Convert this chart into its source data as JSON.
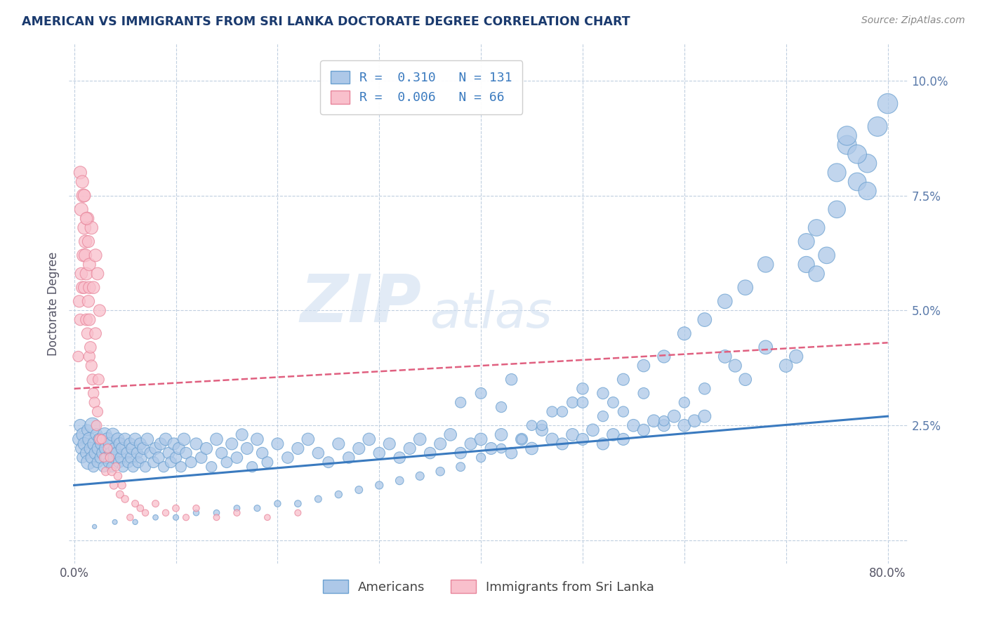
{
  "title": "AMERICAN VS IMMIGRANTS FROM SRI LANKA DOCTORATE DEGREE CORRELATION CHART",
  "source_text": "Source: ZipAtlas.com",
  "ylabel": "Doctorate Degree",
  "xlim": [
    -0.005,
    0.82
  ],
  "ylim": [
    -0.005,
    0.108
  ],
  "xtick_values": [
    0.0,
    0.1,
    0.2,
    0.3,
    0.4,
    0.5,
    0.6,
    0.7,
    0.8
  ],
  "xtick_labels": [
    "0.0%",
    "",
    "",
    "",
    "",
    "",
    "",
    "",
    "80.0%"
  ],
  "ytick_values": [
    0.0,
    0.025,
    0.05,
    0.075,
    0.1
  ],
  "ytick_labels": [
    "",
    "2.5%",
    "5.0%",
    "7.5%",
    "10.0%"
  ],
  "blue_fill_color": "#adc8e8",
  "blue_edge_color": "#6aa0d0",
  "blue_line_color": "#3a7abf",
  "pink_fill_color": "#f9c0cc",
  "pink_edge_color": "#e8849a",
  "pink_line_color": "#e06080",
  "r_blue": 0.31,
  "n_blue": 131,
  "r_pink": 0.006,
  "n_pink": 66,
  "legend_blue_label": "Americans",
  "legend_pink_label": "Immigrants from Sri Lanka",
  "watermark_zip": "ZIP",
  "watermark_atlas": "atlas",
  "background_color": "#ffffff",
  "grid_color": "#c0cfe0",
  "title_color": "#1a3a6e",
  "source_color": "#888888",
  "axis_label_color": "#5a7aaa",
  "blue_trend_x": [
    0.0,
    0.8
  ],
  "blue_trend_y": [
    0.012,
    0.027
  ],
  "pink_trend_x": [
    0.0,
    0.8
  ],
  "pink_trend_y": [
    0.033,
    0.043
  ],
  "blue_scatter": {
    "x": [
      0.005,
      0.006,
      0.007,
      0.008,
      0.009,
      0.01,
      0.012,
      0.013,
      0.014,
      0.015,
      0.016,
      0.017,
      0.018,
      0.019,
      0.02,
      0.021,
      0.022,
      0.023,
      0.024,
      0.025,
      0.026,
      0.027,
      0.028,
      0.029,
      0.03,
      0.031,
      0.032,
      0.033,
      0.034,
      0.035,
      0.036,
      0.037,
      0.038,
      0.039,
      0.04,
      0.042,
      0.043,
      0.044,
      0.045,
      0.046,
      0.047,
      0.048,
      0.05,
      0.052,
      0.053,
      0.055,
      0.056,
      0.057,
      0.058,
      0.06,
      0.062,
      0.063,
      0.065,
      0.066,
      0.068,
      0.07,
      0.072,
      0.075,
      0.078,
      0.08,
      0.083,
      0.085,
      0.088,
      0.09,
      0.093,
      0.095,
      0.098,
      0.1,
      0.103,
      0.105,
      0.108,
      0.11,
      0.115,
      0.12,
      0.125,
      0.13,
      0.135,
      0.14,
      0.145,
      0.15,
      0.155,
      0.16,
      0.165,
      0.17,
      0.175,
      0.18,
      0.185,
      0.19,
      0.2,
      0.21,
      0.22,
      0.23,
      0.24,
      0.25,
      0.26,
      0.27,
      0.28,
      0.29,
      0.3,
      0.31,
      0.32,
      0.33,
      0.34,
      0.35,
      0.36,
      0.37,
      0.38,
      0.39,
      0.4,
      0.41,
      0.42,
      0.43,
      0.44,
      0.45,
      0.46,
      0.47,
      0.48,
      0.49,
      0.5,
      0.51,
      0.52,
      0.53,
      0.54,
      0.55,
      0.56,
      0.57,
      0.58,
      0.59,
      0.6,
      0.61,
      0.62
    ],
    "y": [
      0.022,
      0.025,
      0.02,
      0.018,
      0.023,
      0.021,
      0.019,
      0.024,
      0.017,
      0.022,
      0.02,
      0.018,
      0.025,
      0.016,
      0.021,
      0.019,
      0.023,
      0.017,
      0.02,
      0.022,
      0.018,
      0.021,
      0.019,
      0.016,
      0.023,
      0.02,
      0.018,
      0.022,
      0.017,
      0.021,
      0.019,
      0.016,
      0.023,
      0.018,
      0.02,
      0.019,
      0.022,
      0.017,
      0.021,
      0.018,
      0.02,
      0.016,
      0.022,
      0.019,
      0.017,
      0.021,
      0.018,
      0.02,
      0.016,
      0.022,
      0.019,
      0.017,
      0.021,
      0.018,
      0.02,
      0.016,
      0.022,
      0.019,
      0.017,
      0.02,
      0.018,
      0.021,
      0.016,
      0.022,
      0.019,
      0.017,
      0.021,
      0.018,
      0.02,
      0.016,
      0.022,
      0.019,
      0.017,
      0.021,
      0.018,
      0.02,
      0.016,
      0.022,
      0.019,
      0.017,
      0.021,
      0.018,
      0.023,
      0.02,
      0.016,
      0.022,
      0.019,
      0.017,
      0.021,
      0.018,
      0.02,
      0.022,
      0.019,
      0.017,
      0.021,
      0.018,
      0.02,
      0.022,
      0.019,
      0.021,
      0.018,
      0.02,
      0.022,
      0.019,
      0.021,
      0.023,
      0.019,
      0.021,
      0.022,
      0.02,
      0.023,
      0.019,
      0.022,
      0.02,
      0.024,
      0.022,
      0.021,
      0.023,
      0.022,
      0.024,
      0.021,
      0.023,
      0.022,
      0.025,
      0.024,
      0.026,
      0.025,
      0.027,
      0.025,
      0.026,
      0.027
    ],
    "s": [
      180,
      160,
      140,
      120,
      200,
      170,
      150,
      130,
      220,
      190,
      160,
      140,
      250,
      120,
      200,
      170,
      150,
      130,
      180,
      160,
      140,
      170,
      150,
      120,
      200,
      170,
      150,
      180,
      130,
      170,
      150,
      120,
      180,
      140,
      160,
      150,
      170,
      130,
      160,
      140,
      150,
      120,
      160,
      140,
      130,
      150,
      140,
      150,
      120,
      160,
      140,
      130,
      150,
      140,
      150,
      120,
      160,
      140,
      130,
      150,
      140,
      150,
      120,
      160,
      140,
      130,
      150,
      140,
      150,
      120,
      160,
      140,
      130,
      150,
      140,
      150,
      120,
      160,
      140,
      130,
      150,
      140,
      150,
      150,
      120,
      160,
      140,
      130,
      150,
      140,
      150,
      160,
      140,
      130,
      150,
      140,
      150,
      160,
      140,
      150,
      140,
      150,
      160,
      140,
      150,
      160,
      140,
      150,
      160,
      150,
      160,
      140,
      150,
      160,
      150,
      160,
      150,
      160,
      150,
      160,
      150,
      160,
      150,
      160,
      150,
      160,
      150,
      165,
      160,
      160,
      165
    ]
  },
  "blue_scatter_high": {
    "x": [
      0.38,
      0.4,
      0.42,
      0.43,
      0.45,
      0.47,
      0.49,
      0.5,
      0.52,
      0.53,
      0.54,
      0.56,
      0.58,
      0.6,
      0.62,
      0.64,
      0.65,
      0.66,
      0.68,
      0.7,
      0.71,
      0.72,
      0.73,
      0.74,
      0.75,
      0.76,
      0.77,
      0.78,
      0.79,
      0.8,
      0.76,
      0.77,
      0.78,
      0.75,
      0.73,
      0.72,
      0.68,
      0.66,
      0.64,
      0.62,
      0.6,
      0.58,
      0.56,
      0.54,
      0.52,
      0.5,
      0.48,
      0.46,
      0.44,
      0.42,
      0.4,
      0.38,
      0.36,
      0.34,
      0.32,
      0.3,
      0.28,
      0.26,
      0.24,
      0.22,
      0.2,
      0.18,
      0.16,
      0.14,
      0.12,
      0.1,
      0.08,
      0.06,
      0.04,
      0.02
    ],
    "y": [
      0.03,
      0.032,
      0.029,
      0.035,
      0.025,
      0.028,
      0.03,
      0.033,
      0.027,
      0.03,
      0.028,
      0.032,
      0.026,
      0.03,
      0.033,
      0.04,
      0.038,
      0.035,
      0.042,
      0.038,
      0.04,
      0.06,
      0.058,
      0.062,
      0.08,
      0.086,
      0.078,
      0.082,
      0.09,
      0.095,
      0.088,
      0.084,
      0.076,
      0.072,
      0.068,
      0.065,
      0.06,
      0.055,
      0.052,
      0.048,
      0.045,
      0.04,
      0.038,
      0.035,
      0.032,
      0.03,
      0.028,
      0.025,
      0.022,
      0.02,
      0.018,
      0.016,
      0.015,
      0.014,
      0.013,
      0.012,
      0.011,
      0.01,
      0.009,
      0.008,
      0.008,
      0.007,
      0.007,
      0.006,
      0.006,
      0.005,
      0.005,
      0.004,
      0.004,
      0.003
    ],
    "s": [
      120,
      130,
      120,
      140,
      110,
      120,
      130,
      140,
      120,
      130,
      120,
      130,
      110,
      120,
      140,
      180,
      170,
      160,
      200,
      180,
      190,
      280,
      260,
      290,
      350,
      380,
      340,
      360,
      400,
      420,
      390,
      370,
      330,
      310,
      290,
      275,
      260,
      240,
      220,
      200,
      185,
      170,
      160,
      150,
      140,
      130,
      120,
      110,
      100,
      95,
      90,
      85,
      80,
      75,
      70,
      65,
      60,
      55,
      50,
      48,
      45,
      42,
      40,
      38,
      36,
      34,
      30,
      28,
      25,
      20
    ]
  },
  "pink_scatter": {
    "x": [
      0.004,
      0.005,
      0.006,
      0.007,
      0.008,
      0.009,
      0.01,
      0.01,
      0.011,
      0.012,
      0.012,
      0.013,
      0.014,
      0.015,
      0.015,
      0.015,
      0.016,
      0.017,
      0.018,
      0.019,
      0.02,
      0.021,
      0.022,
      0.023,
      0.024,
      0.025,
      0.007,
      0.009,
      0.011,
      0.013,
      0.015,
      0.017,
      0.019,
      0.021,
      0.023,
      0.025,
      0.027,
      0.029,
      0.031,
      0.033,
      0.035,
      0.037,
      0.039,
      0.041,
      0.043,
      0.045,
      0.047,
      0.05,
      0.055,
      0.06,
      0.065,
      0.07,
      0.08,
      0.09,
      0.1,
      0.11,
      0.12,
      0.14,
      0.16,
      0.19,
      0.22,
      0.006,
      0.008,
      0.01,
      0.012,
      0.014
    ],
    "y": [
      0.04,
      0.052,
      0.048,
      0.058,
      0.055,
      0.062,
      0.068,
      0.055,
      0.062,
      0.058,
      0.048,
      0.045,
      0.052,
      0.048,
      0.04,
      0.055,
      0.042,
      0.038,
      0.035,
      0.032,
      0.03,
      0.045,
      0.025,
      0.028,
      0.035,
      0.022,
      0.072,
      0.075,
      0.065,
      0.07,
      0.06,
      0.068,
      0.055,
      0.062,
      0.058,
      0.05,
      0.022,
      0.018,
      0.015,
      0.02,
      0.018,
      0.015,
      0.012,
      0.016,
      0.014,
      0.01,
      0.012,
      0.009,
      0.005,
      0.008,
      0.007,
      0.006,
      0.008,
      0.006,
      0.007,
      0.005,
      0.007,
      0.005,
      0.006,
      0.005,
      0.006,
      0.08,
      0.078,
      0.075,
      0.07,
      0.065
    ],
    "s": [
      120,
      150,
      140,
      160,
      155,
      170,
      180,
      155,
      170,
      165,
      145,
      140,
      155,
      148,
      135,
      158,
      142,
      135,
      128,
      122,
      118,
      145,
      112,
      118,
      130,
      108,
      185,
      190,
      172,
      178,
      165,
      175,
      158,
      168,
      162,
      150,
      90,
      82,
      75,
      85,
      80,
      75,
      68,
      72,
      68,
      60,
      65,
      55,
      45,
      50,
      48,
      45,
      50,
      45,
      48,
      42,
      45,
      40,
      44,
      38,
      42,
      170,
      168,
      162,
      158,
      152
    ]
  }
}
